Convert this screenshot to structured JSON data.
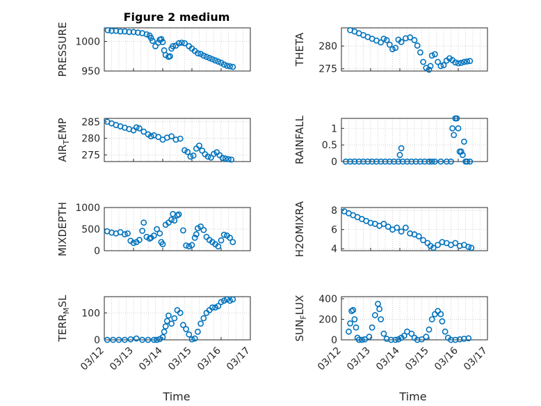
{
  "figure": {
    "title": "Figure 2 medium",
    "xlabel": "Time"
  },
  "colors": {
    "marker": "#0072bd",
    "axis": "#262626",
    "grid": "#bdbdbd"
  },
  "chart_data": [
    {
      "type": "scatter",
      "ylabel": "PRESSURE",
      "ylim": [
        950,
        1023
      ],
      "yticks": [
        "950",
        "1000"
      ],
      "ytick_values": [
        950,
        1000
      ],
      "xlim": [
        "03/12",
        "03/17"
      ],
      "grid": true,
      "x": [
        0.12,
        0.25,
        0.4,
        0.55,
        0.7,
        0.85,
        1.0,
        1.15,
        1.3,
        1.45,
        1.55,
        1.6,
        1.65,
        1.75,
        1.85,
        1.9,
        1.95,
        2.0,
        2.05,
        2.1,
        2.2,
        2.25,
        2.3,
        2.35,
        2.45,
        2.55,
        2.65,
        2.75,
        2.9,
        3.0,
        3.1,
        3.2,
        3.3,
        3.4,
        3.5,
        3.6,
        3.7,
        3.8,
        3.9,
        4.0,
        4.1,
        4.2,
        4.3,
        4.4
      ],
      "y": [
        1019,
        1018,
        1018,
        1017,
        1017,
        1016,
        1016,
        1015,
        1014,
        1012,
        1010,
        1006,
        1001,
        992,
        998,
        1003,
        1004,
        999,
        985,
        977,
        974,
        975,
        988,
        992,
        993,
        997,
        998,
        997,
        992,
        988,
        984,
        980,
        979,
        976,
        974,
        972,
        970,
        968,
        966,
        964,
        961,
        959,
        958,
        957
      ]
    },
    {
      "type": "scatter",
      "ylabel": "THETA",
      "ylim": [
        274.5,
        284
      ],
      "yticks": [
        "275",
        "280"
      ],
      "ytick_values": [
        275,
        280
      ],
      "xlim": [
        "03/12",
        "03/17"
      ],
      "grid": true,
      "x": [
        0.3,
        0.45,
        0.6,
        0.75,
        0.9,
        1.05,
        1.2,
        1.35,
        1.45,
        1.55,
        1.65,
        1.75,
        1.85,
        1.95,
        2.05,
        2.2,
        2.35,
        2.5,
        2.6,
        2.7,
        2.8,
        2.9,
        3.0,
        3.05,
        3.1,
        3.2,
        3.3,
        3.4,
        3.5,
        3.6,
        3.7,
        3.8,
        3.9,
        4.0,
        4.1,
        4.2,
        4.3,
        4.4
      ],
      "y": [
        283.5,
        283.2,
        282.8,
        282.4,
        282,
        281.6,
        281.2,
        280.8,
        281.6,
        281.3,
        280.3,
        279.3,
        279.6,
        281.4,
        280.9,
        281.7,
        281.9,
        281.3,
        280.1,
        278.6,
        276.5,
        275.2,
        274.8,
        275.6,
        277.9,
        278.2,
        276.5,
        275.6,
        275.8,
        276.8,
        277.3,
        276.9,
        276.4,
        276.2,
        276.3,
        276.5,
        276.6,
        276.7
      ]
    },
    {
      "type": "scatter",
      "ylabel": "AIR_TEMP",
      "ylim": [
        273,
        286
      ],
      "yticks": [
        "275",
        "280",
        "285"
      ],
      "ytick_values": [
        275,
        280,
        285
      ],
      "xlim": [
        "03/12",
        "03/17"
      ],
      "grid": true,
      "x": [
        0.1,
        0.25,
        0.4,
        0.55,
        0.7,
        0.85,
        1.0,
        1.1,
        1.2,
        1.35,
        1.5,
        1.6,
        1.7,
        1.85,
        2.0,
        2.15,
        2.3,
        2.45,
        2.6,
        2.75,
        2.85,
        2.95,
        3.05,
        3.15,
        3.25,
        3.35,
        3.45,
        3.55,
        3.65,
        3.75,
        3.85,
        3.95,
        4.05,
        4.15,
        4.25,
        4.35
      ],
      "y": [
        285,
        284.5,
        284,
        283.6,
        283.2,
        282.8,
        282.4,
        283.3,
        283,
        282,
        281.2,
        280.6,
        280.9,
        280.4,
        279.6,
        280.2,
        280.6,
        279.6,
        279.9,
        276.4,
        275.9,
        274.5,
        274.8,
        276.9,
        277.8,
        276.3,
        275.2,
        274.5,
        274.2,
        275.3,
        275.8,
        274.9,
        274.1,
        273.9,
        273.7,
        273.6
      ]
    },
    {
      "type": "scatter",
      "ylabel": "RAINFALL",
      "ylim": [
        0,
        1.3
      ],
      "yticks": [
        "0",
        "0.5",
        "1"
      ],
      "ytick_values": [
        0,
        0.5,
        1
      ],
      "xlim": [
        "03/12",
        "03/17"
      ],
      "grid": true,
      "x": [
        0.15,
        0.3,
        0.45,
        0.6,
        0.75,
        0.9,
        1.05,
        1.2,
        1.35,
        1.5,
        1.65,
        1.8,
        1.95,
        2.0,
        2.05,
        2.1,
        2.25,
        2.4,
        2.55,
        2.7,
        2.85,
        3.0,
        3.1,
        3.2,
        3.4,
        3.6,
        3.75,
        3.8,
        3.85,
        3.9,
        3.95,
        4.0,
        4.05,
        4.1,
        4.15,
        4.2,
        4.25,
        4.3,
        4.4
      ],
      "y": [
        0,
        0,
        0,
        0,
        0,
        0,
        0,
        0,
        0,
        0,
        0,
        0,
        0,
        0.2,
        0.4,
        0,
        0,
        0,
        0,
        0,
        0,
        0,
        0,
        0,
        0,
        0,
        0,
        1.0,
        0.8,
        1.3,
        1.3,
        1.0,
        0.3,
        0.3,
        0.2,
        0.6,
        0,
        0,
        0
      ]
    },
    {
      "type": "scatter",
      "ylabel": "MIXDEPTH",
      "ylim": [
        0,
        1000
      ],
      "yticks": [
        "0",
        "500",
        "1000"
      ],
      "ytick_values": [
        0,
        500,
        1000
      ],
      "xlim": [
        "03/12",
        "03/17"
      ],
      "grid": true,
      "x": [
        0.1,
        0.25,
        0.4,
        0.55,
        0.7,
        0.8,
        0.9,
        1.0,
        1.1,
        1.2,
        1.3,
        1.35,
        1.45,
        1.55,
        1.6,
        1.7,
        1.8,
        1.9,
        1.95,
        2.0,
        2.1,
        2.2,
        2.3,
        2.35,
        2.4,
        2.5,
        2.55,
        2.7,
        2.8,
        2.9,
        3.0,
        3.1,
        3.15,
        3.2,
        3.3,
        3.4,
        3.5,
        3.6,
        3.7,
        3.8,
        3.9,
        4.0,
        4.1,
        4.2,
        4.3,
        4.4
      ],
      "y": [
        450,
        420,
        400,
        430,
        380,
        400,
        230,
        180,
        200,
        250,
        460,
        650,
        320,
        280,
        300,
        350,
        500,
        400,
        200,
        150,
        600,
        650,
        720,
        850,
        700,
        820,
        840,
        470,
        120,
        100,
        130,
        300,
        380,
        520,
        560,
        480,
        320,
        250,
        200,
        150,
        100,
        240,
        370,
        350,
        300,
        200
      ]
    },
    {
      "type": "scatter",
      "ylabel": "H2OMIXRA",
      "ylim": [
        3.8,
        8.3
      ],
      "yticks": [
        "4",
        "6",
        "8"
      ],
      "ytick_values": [
        4,
        6,
        8
      ],
      "xlim": [
        "03/12",
        "03/17"
      ],
      "grid": true,
      "x": [
        0.1,
        0.25,
        0.4,
        0.55,
        0.7,
        0.85,
        1.0,
        1.15,
        1.3,
        1.45,
        1.6,
        1.75,
        1.9,
        2.05,
        2.2,
        2.35,
        2.5,
        2.65,
        2.8,
        2.95,
        3.05,
        3.15,
        3.3,
        3.45,
        3.6,
        3.75,
        3.9,
        4.05,
        4.2,
        4.35,
        4.45
      ],
      "y": [
        7.9,
        7.7,
        7.5,
        7.3,
        7.1,
        6.9,
        6.7,
        6.6,
        6.4,
        6.6,
        6.3,
        6.0,
        6.2,
        5.8,
        6.2,
        5.6,
        5.5,
        5.3,
        4.9,
        4.6,
        4.3,
        4.1,
        4.4,
        4.7,
        4.6,
        4.4,
        4.6,
        4.3,
        4.4,
        4.2,
        4.1
      ]
    },
    {
      "type": "scatter",
      "ylabel": "TERR_MSL",
      "ylim": [
        0,
        160
      ],
      "yticks": [
        "0",
        "100"
      ],
      "ytick_values": [
        0,
        100
      ],
      "xlim": [
        "03/12",
        "03/17"
      ],
      "grid": true,
      "x": [
        0.1,
        0.3,
        0.5,
        0.7,
        0.9,
        1.1,
        1.3,
        1.5,
        1.7,
        1.8,
        1.9,
        2.0,
        2.05,
        2.1,
        2.15,
        2.2,
        2.3,
        2.4,
        2.5,
        2.6,
        2.7,
        2.8,
        2.9,
        3.0,
        3.1,
        3.2,
        3.3,
        3.4,
        3.5,
        3.6,
        3.7,
        3.8,
        3.9,
        4.0,
        4.1,
        4.2,
        4.3,
        4.4
      ],
      "y": [
        0,
        0,
        0,
        0,
        2,
        5,
        0,
        0,
        0,
        0,
        3,
        10,
        30,
        50,
        70,
        90,
        60,
        80,
        110,
        100,
        55,
        40,
        20,
        2,
        5,
        30,
        60,
        80,
        100,
        110,
        120,
        120,
        125,
        140,
        145,
        150,
        145,
        150
      ]
    },
    {
      "type": "scatter",
      "ylabel": "SUN_FLUX",
      "ylim": [
        0,
        420
      ],
      "yticks": [
        "0",
        "200",
        "400"
      ],
      "ytick_values": [
        0,
        200,
        400
      ],
      "xlim": [
        "03/12",
        "03/17"
      ],
      "grid": true,
      "x": [
        0.25,
        0.3,
        0.35,
        0.4,
        0.45,
        0.5,
        0.55,
        0.6,
        0.7,
        0.8,
        0.95,
        1.05,
        1.15,
        1.25,
        1.3,
        1.35,
        1.45,
        1.55,
        1.7,
        1.85,
        1.95,
        2.05,
        2.15,
        2.25,
        2.4,
        2.5,
        2.6,
        2.75,
        2.9,
        3.0,
        3.1,
        3.2,
        3.3,
        3.4,
        3.45,
        3.55,
        3.65,
        3.75,
        3.9,
        4.05,
        4.2,
        4.35
      ],
      "y": [
        80,
        160,
        280,
        290,
        200,
        120,
        20,
        0,
        0,
        5,
        30,
        120,
        240,
        350,
        300,
        200,
        60,
        10,
        0,
        0,
        5,
        20,
        40,
        80,
        60,
        20,
        0,
        5,
        30,
        100,
        200,
        250,
        280,
        250,
        180,
        80,
        20,
        0,
        0,
        5,
        10,
        15
      ]
    }
  ]
}
